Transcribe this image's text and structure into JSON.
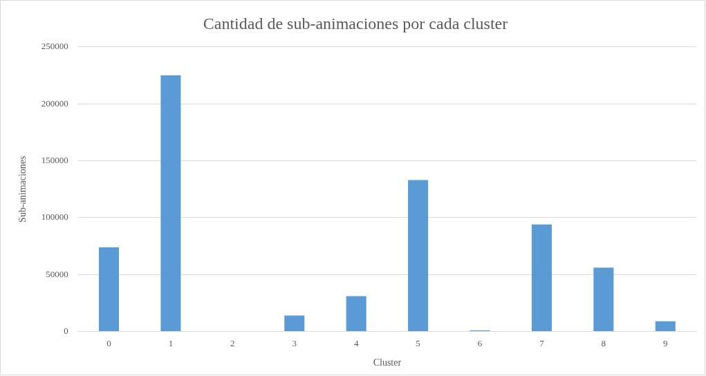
{
  "chart_data": {
    "type": "bar",
    "title": "Cantidad de sub-animaciones por cada cluster",
    "xlabel": "Cluster",
    "ylabel": "Sub-animaciones",
    "categories": [
      "0",
      "1",
      "2",
      "3",
      "4",
      "5",
      "6",
      "7",
      "8",
      "9"
    ],
    "values": [
      74000,
      225000,
      0,
      14000,
      31000,
      133000,
      1000,
      94000,
      56000,
      9000
    ],
    "color": "#5b9bd5",
    "ylim": [
      0,
      250000
    ],
    "yticks": [
      0,
      50000,
      100000,
      150000,
      200000,
      250000
    ],
    "grid": "y",
    "legend": false
  }
}
